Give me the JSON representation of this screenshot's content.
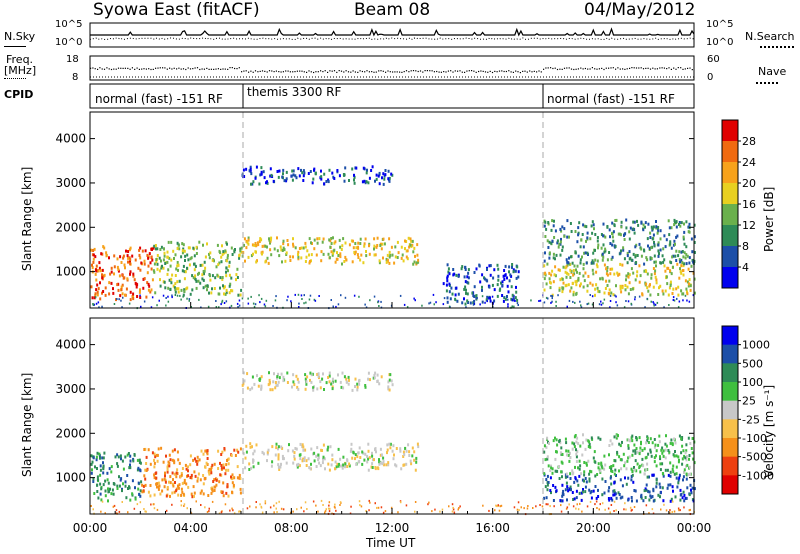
{
  "header": {
    "station": "Syowa East (fitACF)",
    "beam": "Beam 08",
    "date": "04/May/2012"
  },
  "top_panels": {
    "nsky_label": "N.Sky",
    "nsearch_label": "N.Search",
    "freq_label_line1": "Freq.",
    "freq_label_line2": "[MHz]",
    "nave_label": "Nave",
    "cpid_label": "CPID",
    "left_ticks_nsky": [
      "10^5",
      "10^0"
    ],
    "right_ticks_nsky": [
      "10^5",
      "10^0"
    ],
    "left_ticks_freq": [
      "18",
      "8"
    ],
    "right_ticks_nave": [
      "60",
      "0"
    ]
  },
  "cpid_segments": [
    {
      "label": "normal (fast) -151 RF",
      "start_hour": 0,
      "end_hour": 6
    },
    {
      "label": "themis 3300 RF",
      "start_hour": 6,
      "end_hour": 18
    },
    {
      "label": "normal (fast) -151 RF",
      "start_hour": 18,
      "end_hour": 24
    }
  ],
  "power_panel": {
    "ylabel": "Slant Range [km]",
    "yticks": [
      "1000",
      "2000",
      "3000",
      "4000"
    ],
    "colorbar_label": "Power [dB]",
    "colorbar_ticks": [
      "4",
      "8",
      "12",
      "16",
      "20",
      "24",
      "28"
    ],
    "colors": [
      "#0000ee",
      "#1c4fa8",
      "#2e8b57",
      "#6ab04c",
      "#e8d020",
      "#f7a21b",
      "#f06a10",
      "#e00000"
    ]
  },
  "velocity_panel": {
    "ylabel": "Slant Range [km]",
    "yticks": [
      "1000",
      "2000",
      "3000",
      "4000"
    ],
    "colorbar_label": "Velocity [m s⁻¹]",
    "colorbar_ticks": [
      "1000",
      "500",
      "100",
      "25",
      "-25",
      "-100",
      "-500",
      "-1000"
    ],
    "colors": [
      "#0000ee",
      "#1c4fa8",
      "#2e8b57",
      "#3fbf3f",
      "#c8c8c8",
      "#f7c04a",
      "#f5901a",
      "#ee4010",
      "#e00000"
    ]
  },
  "xaxis": {
    "label": "Time UT",
    "ticks": [
      "00:00",
      "04:00",
      "08:00",
      "12:00",
      "16:00",
      "20:00",
      "00:00"
    ]
  },
  "chart_data": [
    {
      "type": "heatmap",
      "title": "Power [dB]",
      "xlabel": "",
      "ylabel": "Slant Range [km]",
      "x_range_hours": [
        0,
        24
      ],
      "ylim": [
        180,
        4600
      ],
      "legend": "colorbar-right",
      "regions": [
        {
          "x_hours": [
            0,
            2.5
          ],
          "y_km": [
            400,
            1600
          ],
          "level_db": 26
        },
        {
          "x_hours": [
            2.5,
            6
          ],
          "y_km": [
            500,
            1700
          ],
          "level_db": 14
        },
        {
          "x_hours": [
            6,
            13
          ],
          "y_km": [
            1200,
            1800
          ],
          "level_db": 18
        },
        {
          "x_hours": [
            6,
            12
          ],
          "y_km": [
            3000,
            3400
          ],
          "level_db": 8
        },
        {
          "x_hours": [
            14,
            17
          ],
          "y_km": [
            300,
            1200
          ],
          "level_db": 6
        },
        {
          "x_hours": [
            18,
            24
          ],
          "y_km": [
            500,
            1200
          ],
          "level_db": 20
        },
        {
          "x_hours": [
            18,
            24
          ],
          "y_km": [
            1200,
            2200
          ],
          "level_db": 10
        }
      ]
    },
    {
      "type": "heatmap",
      "title": "Velocity [m s⁻¹]",
      "xlabel": "Time UT",
      "ylabel": "Slant Range [km]",
      "x_range_hours": [
        0,
        24
      ],
      "ylim": [
        180,
        4600
      ],
      "legend": "colorbar-right",
      "regions": [
        {
          "x_hours": [
            0,
            2
          ],
          "y_km": [
            500,
            1600
          ],
          "velocity": 300
        },
        {
          "x_hours": [
            2,
            6
          ],
          "y_km": [
            600,
            1700
          ],
          "velocity": -400
        },
        {
          "x_hours": [
            6,
            13
          ],
          "y_km": [
            1200,
            1800
          ],
          "velocity": 0
        },
        {
          "x_hours": [
            6,
            12
          ],
          "y_km": [
            3000,
            3400
          ],
          "velocity": 0
        },
        {
          "x_hours": [
            18,
            24
          ],
          "y_km": [
            500,
            1100
          ],
          "velocity": 600
        },
        {
          "x_hours": [
            18,
            24
          ],
          "y_km": [
            1100,
            2000
          ],
          "velocity": 50
        }
      ]
    }
  ]
}
